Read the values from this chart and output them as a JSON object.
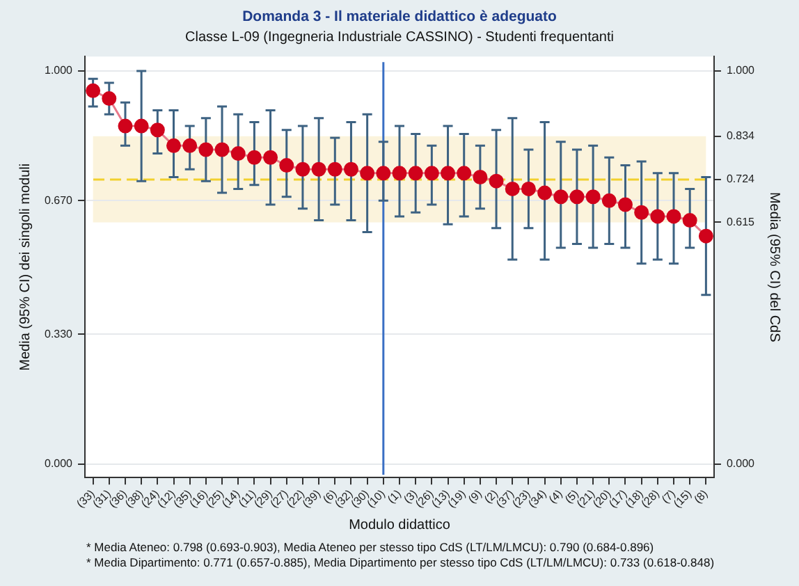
{
  "chart_data": {
    "type": "line",
    "title": "Domanda 3 - Il materiale didattico è adeguato",
    "subtitle": "Classe L-09 (Ingegneria Industriale CASSINO) - Studenti frequentanti",
    "xlabel": "Modulo didattico",
    "ylabel": "Media (95% CI) dei singoli moduli",
    "y2label": "Media (95% CI) del CdS",
    "categories": [
      "(33)",
      "(31)",
      "(36)",
      "(38)",
      "(24)",
      "(12)",
      "(35)",
      "(16)",
      "(25)",
      "(14)",
      "(11)",
      "(29)",
      "(27)",
      "(22)",
      "(39)",
      "(6)",
      "(32)",
      "(30)",
      "(10)",
      "(1)",
      "(3)",
      "(26)",
      "(13)",
      "(19)",
      "(9)",
      "(2)",
      "(37)",
      "(23)",
      "(34)",
      "(4)",
      "(5)",
      "(21)",
      "(20)",
      "(17)",
      "(18)",
      "(28)",
      "(7)",
      "(15)",
      "(8)"
    ],
    "series": [
      {
        "color": "#d0021b",
        "marker": "circle",
        "values": [
          0.95,
          0.93,
          0.86,
          0.86,
          0.85,
          0.81,
          0.81,
          0.8,
          0.8,
          0.79,
          0.78,
          0.78,
          0.76,
          0.75,
          0.75,
          0.75,
          0.75,
          0.74,
          0.74,
          0.74,
          0.74,
          0.74,
          0.74,
          0.74,
          0.73,
          0.72,
          0.7,
          0.7,
          0.69,
          0.68,
          0.68,
          0.68,
          0.67,
          0.66,
          0.64,
          0.63,
          0.63,
          0.62,
          0.58
        ],
        "errors": [
          [
            0.91,
            0.98
          ],
          [
            0.89,
            0.97
          ],
          [
            0.81,
            0.92
          ],
          [
            0.72,
            1.0
          ],
          [
            0.79,
            0.9
          ],
          [
            0.73,
            0.9
          ],
          [
            0.75,
            0.86
          ],
          [
            0.72,
            0.88
          ],
          [
            0.69,
            0.91
          ],
          [
            0.7,
            0.89
          ],
          [
            0.71,
            0.87
          ],
          [
            0.66,
            0.9
          ],
          [
            0.68,
            0.85
          ],
          [
            0.65,
            0.86
          ],
          [
            0.62,
            0.88
          ],
          [
            0.66,
            0.83
          ],
          [
            0.62,
            0.87
          ],
          [
            0.59,
            0.89
          ],
          [
            0.67,
            0.82
          ],
          [
            0.63,
            0.86
          ],
          [
            0.64,
            0.84
          ],
          [
            0.66,
            0.81
          ],
          [
            0.61,
            0.86
          ],
          [
            0.63,
            0.84
          ],
          [
            0.65,
            0.81
          ],
          [
            0.6,
            0.85
          ],
          [
            0.52,
            0.88
          ],
          [
            0.6,
            0.8
          ],
          [
            0.52,
            0.87
          ],
          [
            0.55,
            0.82
          ],
          [
            0.56,
            0.8
          ],
          [
            0.55,
            0.81
          ],
          [
            0.56,
            0.78
          ],
          [
            0.55,
            0.76
          ],
          [
            0.51,
            0.77
          ],
          [
            0.52,
            0.74
          ],
          [
            0.51,
            0.74
          ],
          [
            0.55,
            0.7
          ],
          [
            0.43,
            0.73
          ]
        ]
      }
    ],
    "ylim": [
      -0.035,
      1.037
    ],
    "yticks": [
      {
        "value": 0,
        "label": "0.000"
      },
      {
        "value": 0.33,
        "label": "0.330"
      },
      {
        "value": 0.67,
        "label": "0.670"
      },
      {
        "value": 1,
        "label": "1.000"
      }
    ],
    "y2lim": [
      -0.035,
      1.037
    ],
    "y2ticks": [
      {
        "value": 0,
        "label": "0.000"
      },
      {
        "value": 0.615,
        "label": "0.615"
      },
      {
        "value": 0.724,
        "label": "0.724"
      },
      {
        "value": 0.834,
        "label": "0.834"
      },
      {
        "value": 1,
        "label": "1.000"
      }
    ],
    "grid": "y",
    "legend": false,
    "line_style": "solid",
    "bands": [
      {
        "axis": "y2",
        "from": 0.615,
        "to": 0.834,
        "color": "#fbf3dc"
      }
    ],
    "ref_lines": [
      {
        "axis": "y2",
        "value": 0.724,
        "color": "#f2d12e",
        "line_style": "dashed"
      },
      {
        "axis": "x",
        "value": "(10)",
        "color": "#3a6fc4",
        "line_style": "solid"
      }
    ],
    "annotations": [
      "* Media Ateneo: 0.798 (0.693-0.903),  Media Ateneo per stesso tipo CdS (LT/LM/LMCU): 0.790 (0.684-0.896)",
      "* Media Dipartimento: 0.771 (0.657-0.885), Media Dipartimento per stesso tipo CdS (LT/LM/LMCU): 0.733 (0.618-0.848)"
    ]
  }
}
